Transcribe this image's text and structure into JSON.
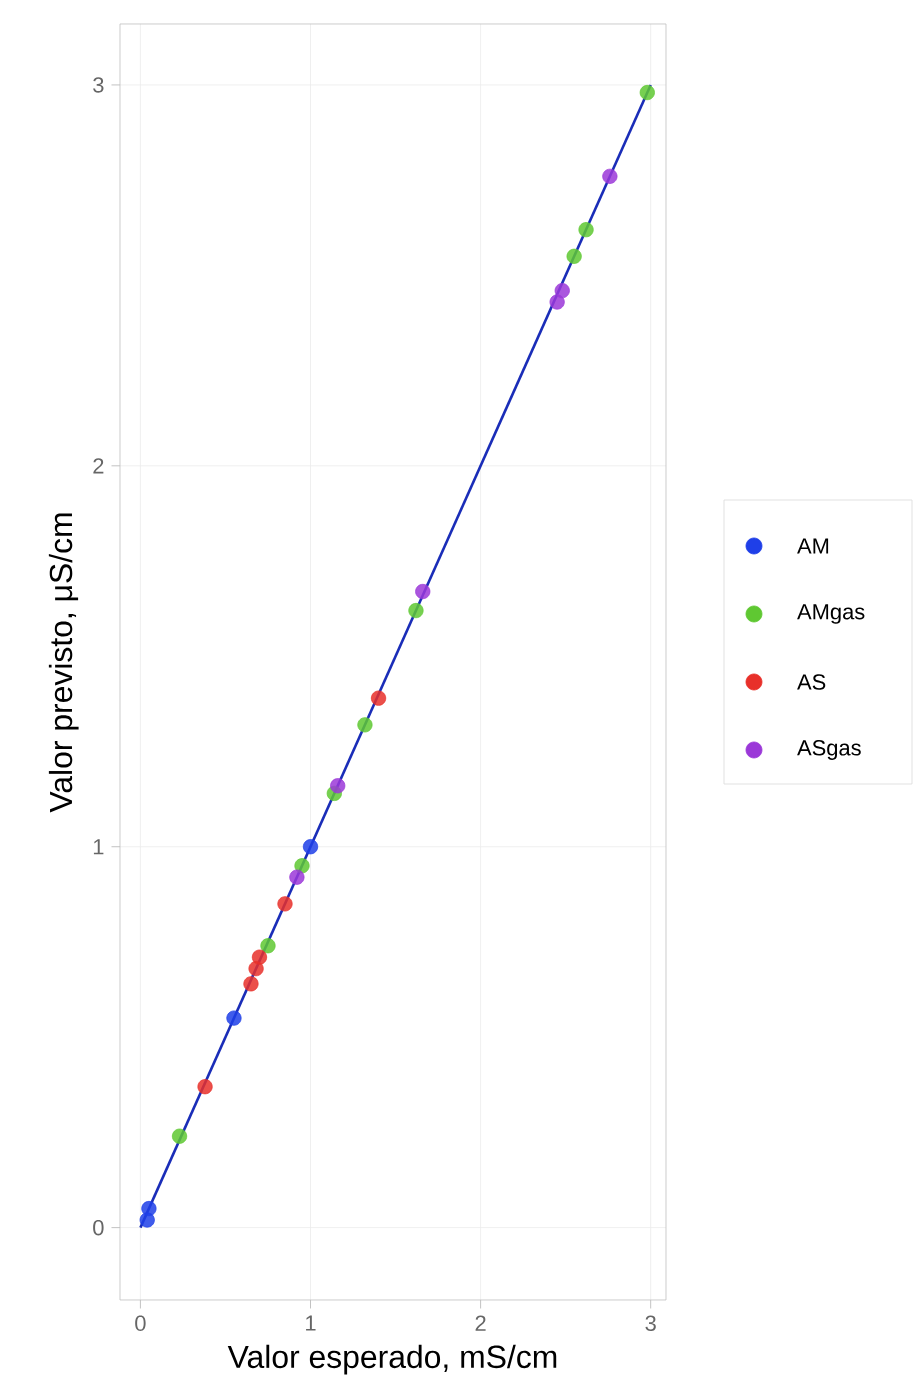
{
  "chart_data": {
    "type": "scatter",
    "xlabel": "Valor esperado, mS/cm",
    "ylabel": "Valor previsto, μS/cm",
    "xlim": [
      -0.12,
      3.09
    ],
    "ylim": [
      -0.19,
      3.16
    ],
    "xticks": [
      0,
      1,
      2,
      3
    ],
    "yticks": [
      0,
      1,
      2,
      3
    ],
    "grid": true,
    "legend": "right",
    "marker": "circle",
    "series": [
      {
        "name": "AM",
        "color": "#1f3fe8",
        "x": [
          0.05,
          0.04,
          0.55,
          1.0
        ],
        "values": [
          0.05,
          0.02,
          0.55,
          1.0
        ]
      },
      {
        "name": "AMgas",
        "color": "#5fc832",
        "x": [
          0.23,
          0.75,
          0.95,
          1.14,
          1.32,
          1.62,
          2.55,
          2.62,
          2.98
        ],
        "values": [
          0.24,
          0.74,
          0.95,
          1.14,
          1.32,
          1.62,
          2.55,
          2.62,
          2.98
        ]
      },
      {
        "name": "AS",
        "color": "#e8302a",
        "x": [
          0.38,
          0.65,
          0.68,
          0.7,
          0.85,
          1.4
        ],
        "values": [
          0.37,
          0.64,
          0.68,
          0.71,
          0.85,
          1.39
        ]
      },
      {
        "name": "ASgas",
        "color": "#9b38d8",
        "x": [
          0.92,
          1.16,
          1.66,
          2.45,
          2.48,
          2.76
        ],
        "values": [
          0.92,
          1.16,
          1.67,
          2.43,
          2.46,
          2.76
        ]
      },
      {
        "type": "line",
        "marker": "none",
        "color": "#1a2db8",
        "x": [
          0,
          3
        ],
        "values": [
          0,
          3
        ]
      }
    ]
  }
}
